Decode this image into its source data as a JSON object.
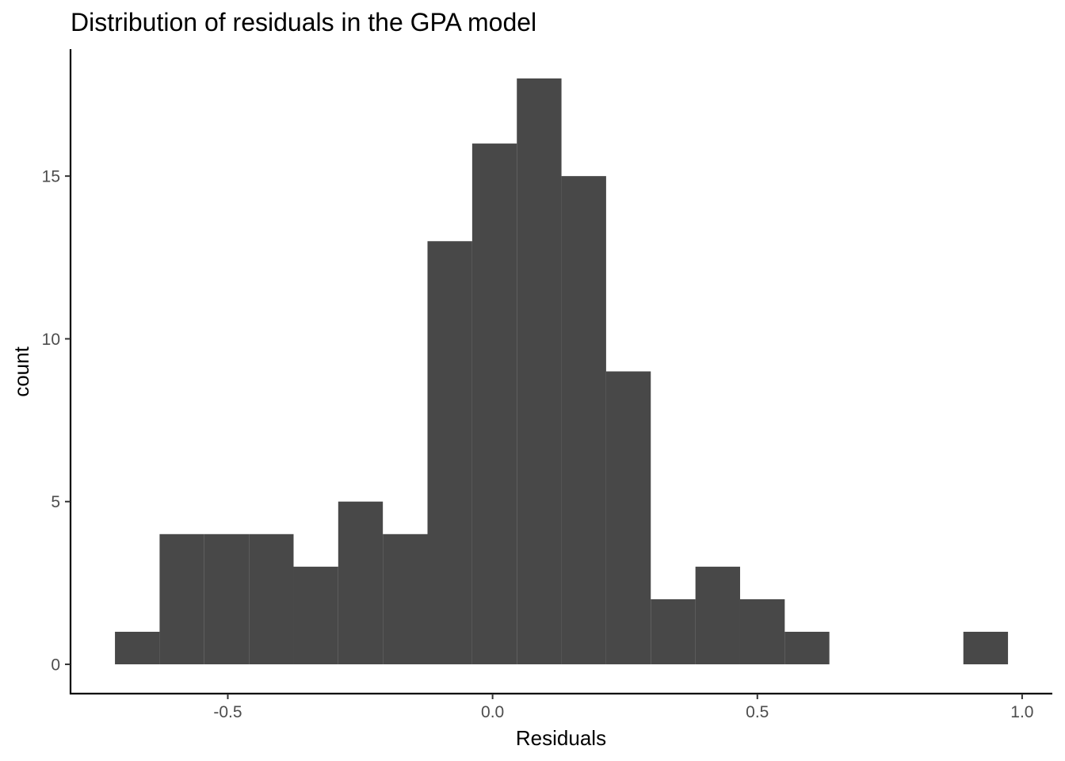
{
  "chart_data": {
    "type": "bar",
    "subtype": "histogram",
    "title": "Distribution of residuals in the GPA model",
    "xlabel": "Residuals",
    "ylabel": "count",
    "bin_width": 0.0843,
    "bins": [
      {
        "x0": -0.7131,
        "x1": -0.6288,
        "count": 1
      },
      {
        "x0": -0.6288,
        "x1": -0.5445,
        "count": 4
      },
      {
        "x0": -0.5445,
        "x1": -0.4601,
        "count": 4
      },
      {
        "x0": -0.4601,
        "x1": -0.3758,
        "count": 4
      },
      {
        "x0": -0.3758,
        "x1": -0.2915,
        "count": 3
      },
      {
        "x0": -0.2915,
        "x1": -0.2072,
        "count": 5
      },
      {
        "x0": -0.2072,
        "x1": -0.1229,
        "count": 4
      },
      {
        "x0": -0.1229,
        "x1": -0.0385,
        "count": 13
      },
      {
        "x0": -0.0385,
        "x1": 0.0458,
        "count": 16
      },
      {
        "x0": 0.0458,
        "x1": 0.1301,
        "count": 18
      },
      {
        "x0": 0.1301,
        "x1": 0.2144,
        "count": 15
      },
      {
        "x0": 0.2144,
        "x1": 0.2987,
        "count": 9
      },
      {
        "x0": 0.2987,
        "x1": 0.3831,
        "count": 2
      },
      {
        "x0": 0.3831,
        "x1": 0.4674,
        "count": 3
      },
      {
        "x0": 0.4674,
        "x1": 0.5517,
        "count": 2
      },
      {
        "x0": 0.5517,
        "x1": 0.636,
        "count": 1
      },
      {
        "x0": 0.636,
        "x1": 0.7204,
        "count": 0
      },
      {
        "x0": 0.7204,
        "x1": 0.8047,
        "count": 0
      },
      {
        "x0": 0.8047,
        "x1": 0.889,
        "count": 0
      },
      {
        "x0": 0.889,
        "x1": 0.9733,
        "count": 1
      }
    ],
    "xlim": [
      -0.797,
      1.057
    ],
    "ylim": [
      -0.9,
      18.9
    ],
    "x_ticks": [
      {
        "value": -0.5,
        "label": "-0.5"
      },
      {
        "value": 0.0,
        "label": "0.0"
      },
      {
        "value": 0.5,
        "label": "0.5"
      },
      {
        "value": 1.0,
        "label": "1.0"
      }
    ],
    "y_ticks": [
      {
        "value": 0,
        "label": "0"
      },
      {
        "value": 5,
        "label": "5"
      },
      {
        "value": 10,
        "label": "10"
      },
      {
        "value": 15,
        "label": "15"
      }
    ],
    "grid": false,
    "legend": "none",
    "bar_color": "#484848",
    "axis_color": "#000000",
    "tick_label_color": "#4d4d4d"
  }
}
